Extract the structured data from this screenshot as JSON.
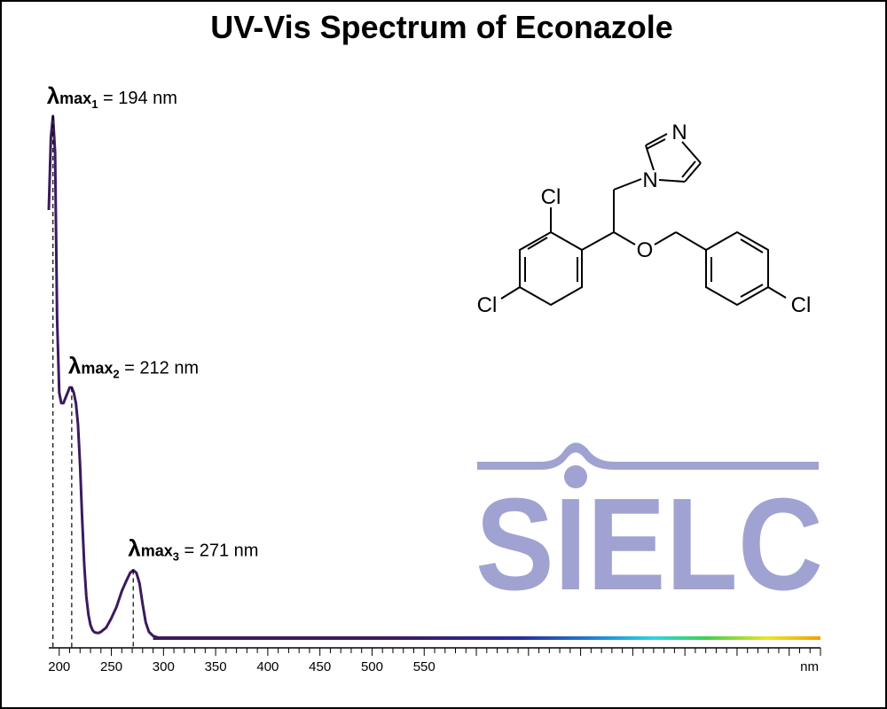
{
  "chart_data": {
    "type": "line",
    "title": "UV-Vis Spectrum of Econazole",
    "xlabel": "nm",
    "ylabel": "",
    "xlim": [
      190,
      930
    ],
    "x_ticks": [
      200,
      250,
      300,
      350,
      400,
      450,
      500,
      550
    ],
    "x_tick_labels": [
      "200",
      "250",
      "300",
      "350",
      "400",
      "450",
      "500",
      "550"
    ],
    "x_axis_unit": "nm",
    "series": [
      {
        "x": [
          190,
          192,
          194,
          196,
          198,
          200,
          202,
          204,
          206,
          208,
          210,
          212,
          214,
          216,
          218,
          220,
          222,
          224,
          226,
          228,
          230,
          232,
          234,
          236,
          238,
          240,
          245,
          250,
          255,
          260,
          264,
          268,
          271,
          274,
          277,
          280,
          283,
          286,
          290,
          295,
          300,
          350,
          400,
          450,
          500,
          550,
          600,
          650,
          700,
          750,
          800,
          850,
          900,
          930
        ],
        "y": [
          0.82,
          0.96,
          1.0,
          0.93,
          0.61,
          0.47,
          0.45,
          0.45,
          0.46,
          0.47,
          0.48,
          0.48,
          0.47,
          0.45,
          0.41,
          0.33,
          0.23,
          0.14,
          0.08,
          0.045,
          0.025,
          0.015,
          0.011,
          0.01,
          0.01,
          0.012,
          0.02,
          0.038,
          0.06,
          0.09,
          0.108,
          0.125,
          0.13,
          0.125,
          0.105,
          0.065,
          0.03,
          0.012,
          0.004,
          0.001,
          0.0,
          0.0,
          0.0,
          0.0,
          0.0,
          0.0,
          0.0,
          0.0,
          0.0,
          0.0,
          0.0,
          0.0,
          0.0,
          0.0
        ]
      }
    ],
    "peaks": [
      {
        "x": 194,
        "y": 1.0,
        "label_prefix": "λ",
        "label_sub": "max",
        "label_index": "1",
        "label_value": " = 194 nm"
      },
      {
        "x": 212,
        "y": 0.48,
        "label_prefix": "λ",
        "label_sub": "max",
        "label_index": "2",
        "label_value": " = 212 nm"
      },
      {
        "x": 271,
        "y": 0.13,
        "label_prefix": "λ",
        "label_sub": "max",
        "label_index": "3",
        "label_value": " = 271 nm"
      }
    ],
    "grid": false,
    "legend": "none",
    "baseline_gradient": [
      "#3b1a5e",
      "#2a2aa0",
      "#1f6fd0",
      "#27d8e0",
      "#3cd24a",
      "#e8e820",
      "#f5a000"
    ],
    "line_color": "#3b1a5e"
  },
  "structure": {
    "atom_labels": [
      "N",
      "N",
      "Cl",
      "O",
      "Cl",
      "Cl"
    ]
  },
  "logo": {
    "text": "SIELC",
    "color": "#a0a2d2"
  }
}
